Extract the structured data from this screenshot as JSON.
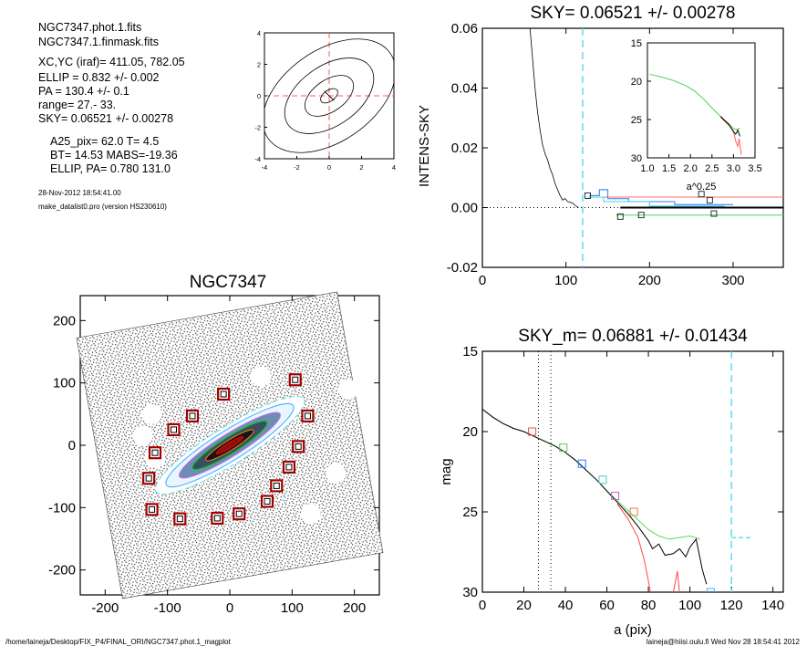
{
  "info": {
    "lines": [
      "NGC7347.phot.1.fits",
      "NGC7347.1.finmask.fits",
      "XC,YC (iraf)=   411.05, 782.05",
      "ELLIP = 0.832 +/- 0.002",
      "PA    = 130.4 +/-   0.1",
      "range=   27.-   33.",
      "SKY= 0.06521 +/- 0.00278",
      "A25_pix= 62.0   T= 4.5",
      "BT=  14.53   MABS=-19.36",
      "ELLIP, PA= 0.780   131.0",
      "28-Nov-2012 18:54:41.00",
      "make_datalist0.pro (version HS230610)"
    ]
  },
  "footer": {
    "left": "/home/laineja/Desktop/FIX_P4/FINAL_ORI/NGC7347.phot.1_magplot",
    "right": "laineja@hiisi.oulu.fi  Wed Nov 28 18:54:41 2012"
  },
  "chart_data": [
    {
      "id": "contour",
      "type": "contour",
      "xlim": [
        -4,
        4
      ],
      "ylim": [
        -4,
        4
      ],
      "xticks": [
        "-4",
        "-2",
        "0",
        "2",
        "4"
      ],
      "yticks": [
        "-4",
        "-2",
        "0",
        "2",
        "4"
      ],
      "ellipses": [
        {
          "a": 0.6,
          "b": 0.35,
          "angle": 35
        },
        {
          "a": 1.7,
          "b": 1.0,
          "angle": 35
        },
        {
          "a": 3.1,
          "b": 1.9,
          "angle": 35
        },
        {
          "a": 4.6,
          "b": 2.9,
          "angle": 35
        }
      ],
      "crosshair_color": "#ff5a5a"
    },
    {
      "id": "sky",
      "type": "line",
      "title": "SKY= 0.06521 +/- 0.00278",
      "ylabel": "INTENS-SKY",
      "xlim": [
        0,
        360
      ],
      "ylim": [
        -0.02,
        0.06
      ],
      "xticks": [
        "0",
        "100",
        "200",
        "300"
      ],
      "yticks": [
        "-0.02",
        "0.00",
        "0.02",
        "0.04",
        "0.06"
      ],
      "profile": [
        [
          57,
          0.06
        ],
        [
          60,
          0.05
        ],
        [
          63,
          0.04
        ],
        [
          66,
          0.032
        ],
        [
          69,
          0.026
        ],
        [
          72,
          0.021
        ],
        [
          75,
          0.018
        ],
        [
          78,
          0.016
        ],
        [
          81,
          0.013
        ],
        [
          84,
          0.011
        ],
        [
          87,
          0.008
        ],
        [
          90,
          0.006
        ],
        [
          93,
          0.004
        ],
        [
          96,
          0.0025
        ],
        [
          99,
          0.003
        ],
        [
          102,
          0.002
        ],
        [
          105,
          0.0018
        ],
        [
          108,
          0.0015
        ],
        [
          112,
          0.0005
        ],
        [
          115,
          0.0
        ]
      ],
      "zero_line": 0.0,
      "black_level": 0.0,
      "sky_cut_x": 120,
      "boxes": [
        [
          126,
          0.004
        ],
        [
          165,
          -0.003
        ],
        [
          190,
          -0.0025
        ],
        [
          262,
          0.0045
        ],
        [
          272,
          0.0025
        ],
        [
          277,
          -0.002
        ]
      ],
      "colors": {
        "red": "#ff6e6e",
        "green": "#66dd66",
        "blue": "#4a8cff",
        "cyan": "#55d8f0",
        "black": "#000000"
      }
    },
    {
      "id": "sky_inset",
      "type": "line",
      "xlabel": "a^0.25",
      "xlim": [
        1.0,
        3.5
      ],
      "ylim": [
        15,
        30
      ],
      "y_inverted": true,
      "xticks": [
        "1.0",
        "1.5",
        "2.0",
        "2.5",
        "3.0",
        "3.5"
      ],
      "yticks": [
        "15",
        "20",
        "25",
        "30"
      ],
      "series": [
        {
          "color": "#55cc55",
          "points": [
            [
              1.05,
              19.1
            ],
            [
              1.3,
              19.4
            ],
            [
              1.6,
              19.9
            ],
            [
              1.9,
              20.6
            ],
            [
              2.1,
              21.3
            ],
            [
              2.3,
              22.3
            ],
            [
              2.5,
              23.5
            ],
            [
              2.7,
              24.6
            ],
            [
              2.9,
              25.6
            ],
            [
              3.0,
              26.2
            ],
            [
              3.1,
              26.3
            ],
            [
              3.15,
              26.1
            ]
          ]
        },
        {
          "color": "#ff6060",
          "points": [
            [
              2.7,
              24.7
            ],
            [
              2.9,
              25.8
            ],
            [
              3.0,
              26.5
            ],
            [
              3.05,
              27.8
            ],
            [
              3.1,
              28.5
            ],
            [
              3.13,
              27.5
            ],
            [
              3.18,
              29.6
            ]
          ]
        },
        {
          "color": "#000000",
          "points": [
            [
              2.7,
              24.6
            ],
            [
              2.9,
              25.7
            ],
            [
              3.0,
              26.6
            ],
            [
              3.05,
              26.9
            ],
            [
              3.1,
              26.4
            ],
            [
              3.15,
              27.2
            ]
          ]
        }
      ]
    },
    {
      "id": "image",
      "type": "scatter",
      "title": "NGC7347",
      "xlim": [
        -240,
        240
      ],
      "ylim": [
        -240,
        240
      ],
      "xticks": [
        "-200",
        "-100",
        "0",
        "100",
        "200"
      ],
      "yticks": [
        "-200",
        "-100",
        "0",
        "100",
        "200"
      ],
      "masks": [
        [
          -10,
          82
        ],
        [
          -60,
          47
        ],
        [
          -90,
          25
        ],
        [
          -120,
          -12
        ],
        [
          -130,
          -53
        ],
        [
          -125,
          -103
        ],
        [
          -80,
          -118
        ],
        [
          -20,
          -117
        ],
        [
          15,
          -110
        ],
        [
          60,
          -90
        ],
        [
          75,
          -65
        ],
        [
          95,
          -35
        ],
        [
          110,
          -2
        ],
        [
          125,
          47
        ],
        [
          105,
          105
        ]
      ],
      "ellipse_colors": [
        "#ff0000",
        "#ff8800",
        "#00cc00",
        "#44aaff",
        "#cc66ff",
        "#66dddd"
      ]
    },
    {
      "id": "mag",
      "type": "line",
      "title": "SKY_m=  0.06881 +/- 0.01434",
      "xlabel": "a (pix)",
      "ylabel": "mag",
      "xlim": [
        0,
        145
      ],
      "ylim": [
        15,
        30
      ],
      "y_inverted": true,
      "xticks": [
        "0",
        "20",
        "40",
        "60",
        "80",
        "100",
        "120",
        "140"
      ],
      "yticks": [
        "15",
        "20",
        "25",
        "30"
      ],
      "range_lines": [
        27,
        33
      ],
      "sky_cut_x": 120,
      "series": [
        {
          "name": "green",
          "color": "#55dd55",
          "points": [
            [
              0,
              18.6
            ],
            [
              5,
              19.1
            ],
            [
              10,
              19.5
            ],
            [
              15,
              19.8
            ],
            [
              20,
              20.0
            ],
            [
              25,
              20.3
            ],
            [
              30,
              20.6
            ],
            [
              35,
              20.9
            ],
            [
              40,
              21.3
            ],
            [
              45,
              21.8
            ],
            [
              50,
              22.4
            ],
            [
              55,
              23.0
            ],
            [
              60,
              23.7
            ],
            [
              65,
              24.3
            ],
            [
              70,
              24.9
            ],
            [
              75,
              25.5
            ],
            [
              80,
              26.1
            ],
            [
              85,
              26.5
            ],
            [
              90,
              26.7
            ],
            [
              95,
              26.6
            ],
            [
              100,
              26.5
            ],
            [
              105,
              26.7
            ]
          ]
        },
        {
          "name": "black",
          "color": "#000000",
          "points": [
            [
              0,
              18.6
            ],
            [
              5,
              19.1
            ],
            [
              10,
              19.5
            ],
            [
              15,
              19.8
            ],
            [
              20,
              20.0
            ],
            [
              25,
              20.3
            ],
            [
              30,
              20.6
            ],
            [
              35,
              20.9
            ],
            [
              40,
              21.3
            ],
            [
              45,
              21.8
            ],
            [
              50,
              22.4
            ],
            [
              55,
              23.0
            ],
            [
              60,
              23.7
            ],
            [
              65,
              24.4
            ],
            [
              70,
              25.1
            ],
            [
              75,
              25.9
            ],
            [
              80,
              26.8
            ],
            [
              82,
              27.3
            ],
            [
              85,
              27.0
            ],
            [
              88,
              27.7
            ],
            [
              92,
              27.6
            ],
            [
              95,
              27.3
            ],
            [
              98,
              27.8
            ],
            [
              100,
              27.2
            ],
            [
              103,
              26.7
            ],
            [
              106,
              28.6
            ],
            [
              108,
              29.5
            ]
          ]
        },
        {
          "name": "red",
          "color": "#ff4444",
          "points": [
            [
              65,
              24.5
            ],
            [
              70,
              25.4
            ],
            [
              75,
              26.6
            ],
            [
              78,
              28.0
            ],
            [
              80,
              29.3
            ],
            [
              81,
              30.0
            ]
          ]
        },
        {
          "name": "red2",
          "color": "#ff4444",
          "points": [
            [
              92,
              30.0
            ],
            [
              94,
              28.7
            ],
            [
              95,
              30.0
            ]
          ]
        }
      ],
      "boxes": [
        {
          "x": 24,
          "y": 20.0,
          "color": "#e05050"
        },
        {
          "x": 39,
          "y": 21.0,
          "color": "#55cc55"
        },
        {
          "x": 48,
          "y": 22.0,
          "color": "#3377ff"
        },
        {
          "x": 58,
          "y": 23.0,
          "color": "#44cccc"
        },
        {
          "x": 64,
          "y": 24.0,
          "color": "#cc55cc"
        },
        {
          "x": 73,
          "y": 25.0,
          "color": "#e08040"
        },
        {
          "x": 110,
          "y": 30.0,
          "color": "#44aaff"
        }
      ],
      "sky_mark_y": 26.6
    }
  ]
}
